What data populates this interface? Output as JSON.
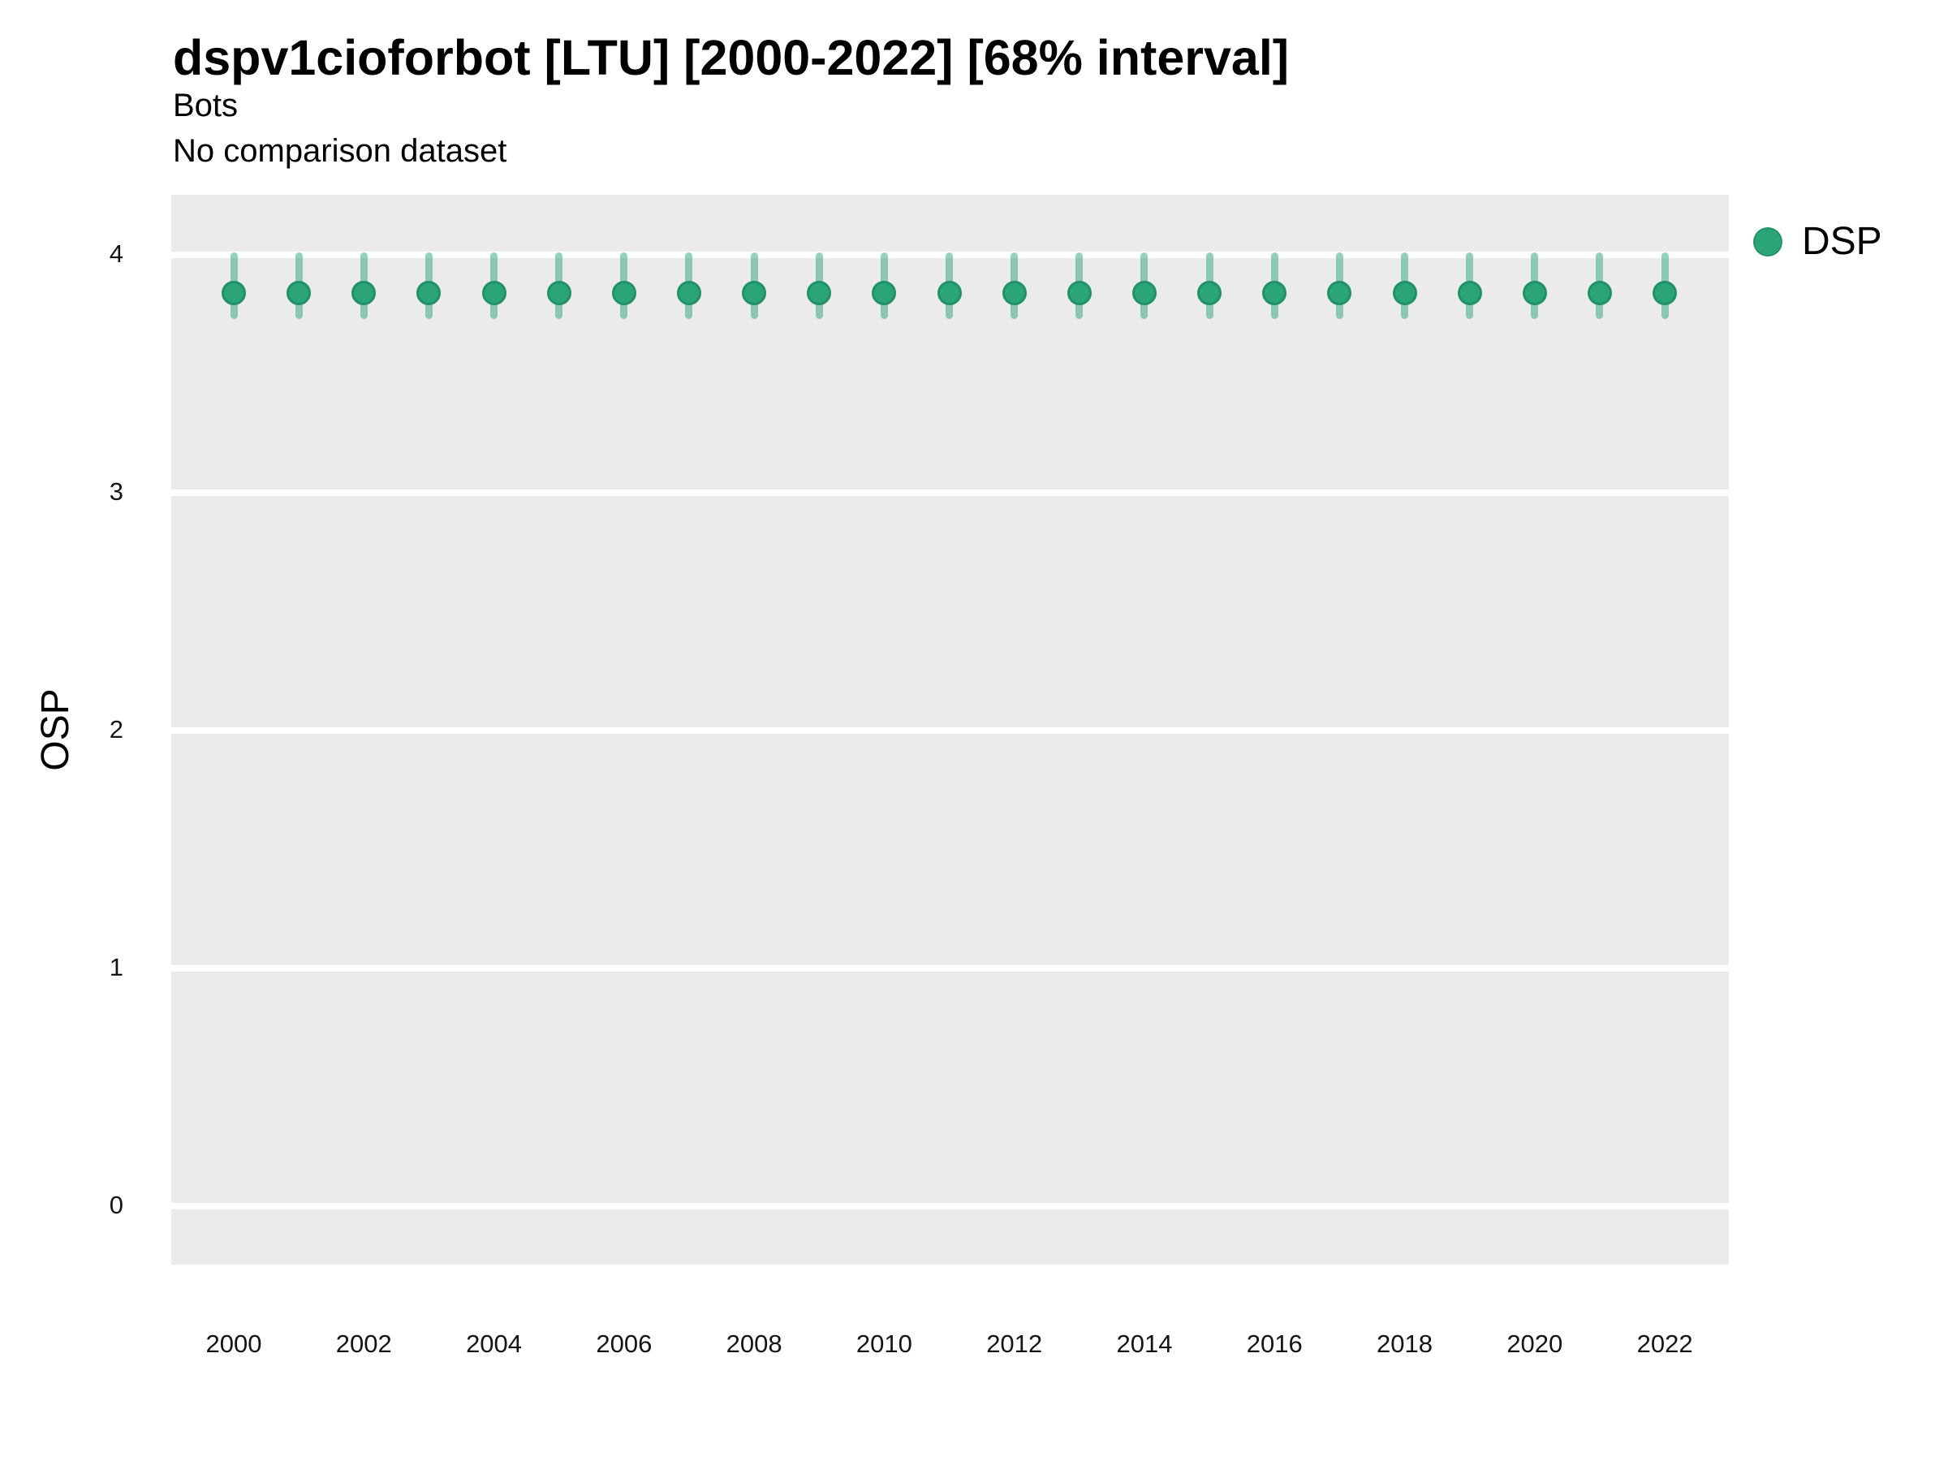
{
  "header": {
    "title": "dspv1cioforbot [LTU] [2000-2022] [68% interval]",
    "subtitle1": "Bots",
    "subtitle2": "No comparison dataset"
  },
  "legend": {
    "items": [
      {
        "label": "DSP",
        "color": "#2BA578"
      }
    ]
  },
  "chart_data": {
    "type": "scatter",
    "title": "dspv1cioforbot [LTU] [2000-2022] [68% interval]",
    "subtitle": [
      "Bots",
      "No comparison dataset"
    ],
    "xlabel": "",
    "ylabel": "OSP",
    "interval_label": "68% interval",
    "x_ticks": [
      2000,
      2002,
      2004,
      2006,
      2008,
      2010,
      2012,
      2014,
      2016,
      2018,
      2020,
      2022
    ],
    "y_ticks": [
      0,
      1,
      2,
      3,
      4
    ],
    "xlim": [
      1999,
      2023
    ],
    "ylim": [
      -0.25,
      4.25
    ],
    "grid": "horizontal major gridlines only, white on gray panel",
    "legend_position": "right-top",
    "series": [
      {
        "name": "DSP",
        "x": [
          2000,
          2001,
          2002,
          2003,
          2004,
          2005,
          2006,
          2007,
          2008,
          2009,
          2010,
          2011,
          2012,
          2013,
          2014,
          2015,
          2016,
          2017,
          2018,
          2019,
          2020,
          2021,
          2022
        ],
        "y": [
          3.84,
          3.84,
          3.84,
          3.84,
          3.84,
          3.84,
          3.84,
          3.84,
          3.84,
          3.84,
          3.84,
          3.84,
          3.84,
          3.84,
          3.84,
          3.84,
          3.84,
          3.84,
          3.84,
          3.84,
          3.84,
          3.84,
          3.84
        ],
        "y_lower": [
          3.73,
          3.73,
          3.73,
          3.73,
          3.73,
          3.73,
          3.73,
          3.73,
          3.73,
          3.73,
          3.73,
          3.73,
          3.73,
          3.73,
          3.73,
          3.73,
          3.73,
          3.73,
          3.73,
          3.73,
          3.73,
          3.73,
          3.73
        ],
        "y_upper": [
          4.01,
          4.01,
          4.01,
          4.01,
          4.01,
          4.01,
          4.01,
          4.01,
          4.01,
          4.01,
          4.01,
          4.01,
          4.01,
          4.01,
          4.01,
          4.01,
          4.01,
          4.01,
          4.01,
          4.01,
          4.01,
          4.01,
          4.01
        ]
      }
    ],
    "colors": {
      "point_fill": "#2BA578",
      "point_stroke": "#219166",
      "interval_bar": "rgba(43,165,120,0.5)",
      "panel_bg": "#EBEBEB",
      "gridline": "#FFFFFF",
      "text": "#000000"
    }
  }
}
